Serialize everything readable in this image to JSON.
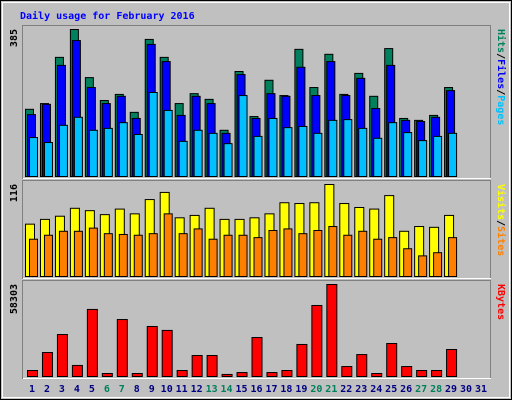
{
  "chart_data": [
    {
      "type": "bar",
      "title": "Daily usage for February 2016",
      "ylim": [
        0,
        385
      ],
      "yticks": [
        385
      ],
      "legend_separator": "/",
      "series": [
        {
          "name": "Hits",
          "color": "#00805c",
          "values": [
            176,
            191,
            312,
            385,
            259,
            199,
            215,
            168,
            359,
            312,
            191,
            217,
            202,
            121,
            275,
            157,
            252,
            212,
            333,
            233,
            320,
            215,
            270,
            210,
            335,
            152,
            147,
            160,
            233,
            null,
            null
          ]
        },
        {
          "name": "Files",
          "color": "#0000ff",
          "values": [
            162,
            189,
            291,
            356,
            233,
            191,
            210,
            152,
            346,
            301,
            160,
            210,
            191,
            113,
            267,
            152,
            217,
            210,
            286,
            212,
            301,
            212,
            257,
            178,
            291,
            147,
            144,
            155,
            225,
            null,
            null
          ]
        },
        {
          "name": "Pages",
          "color": "#00c0ff",
          "values": [
            102,
            89,
            134,
            155,
            121,
            126,
            141,
            110,
            220,
            173,
            92,
            121,
            113,
            86,
            212,
            105,
            152,
            128,
            131,
            113,
            147,
            149,
            126,
            100,
            141,
            115,
            94,
            105,
            113,
            null,
            null
          ]
        }
      ]
    },
    {
      "type": "bar",
      "ylim": [
        0,
        116
      ],
      "yticks": [
        116
      ],
      "legend_separator": "/",
      "series": [
        {
          "name": "Visits",
          "color": "#ffff00",
          "values": [
            66,
            72,
            76,
            86,
            83,
            78,
            85,
            79,
            97,
            106,
            74,
            77,
            86,
            72,
            72,
            74,
            79,
            93,
            92,
            93,
            116,
            92,
            87,
            85,
            102,
            57,
            63,
            62,
            77,
            null,
            null
          ]
        },
        {
          "name": "Sites",
          "color": "#ff8000",
          "values": [
            47,
            52,
            57,
            57,
            61,
            54,
            53,
            52,
            54,
            79,
            54,
            60,
            47,
            52,
            52,
            49,
            58,
            60,
            54,
            58,
            63,
            52,
            57,
            47,
            49,
            35,
            26,
            30,
            49,
            null,
            null
          ]
        }
      ]
    },
    {
      "type": "bar",
      "ylim": [
        0,
        58303
      ],
      "yticks": [
        58303
      ],
      "categories": [
        "1",
        "2",
        "3",
        "4",
        "5",
        "6",
        "7",
        "8",
        "9",
        "10",
        "11",
        "12",
        "13",
        "14",
        "15",
        "16",
        "17",
        "18",
        "19",
        "20",
        "21",
        "22",
        "23",
        "24",
        "25",
        "26",
        "27",
        "28",
        "29",
        "30",
        "31"
      ],
      "category_colors": [
        "#000080",
        "#000080",
        "#000080",
        "#000080",
        "#000080",
        "#00805c",
        "#00805c",
        "#000080",
        "#000080",
        "#000080",
        "#000080",
        "#000080",
        "#00805c",
        "#00805c",
        "#000080",
        "#000080",
        "#000080",
        "#000080",
        "#000080",
        "#00805c",
        "#00805c",
        "#000080",
        "#000080",
        "#000080",
        "#000080",
        "#000080",
        "#00805c",
        "#00805c",
        "#000080",
        "#000080",
        "#000080"
      ],
      "series": [
        {
          "name": "KBytes",
          "color": "#ff0000",
          "values": [
            3800,
            15200,
            26600,
            7000,
            42500,
            1900,
            36100,
            1900,
            31700,
            29200,
            3800,
            13300,
            13300,
            1300,
            2500,
            24700,
            2500,
            3800,
            20300,
            45000,
            58303,
            6300,
            13900,
            1900,
            20900,
            6300,
            3800,
            3800,
            17100,
            null,
            null
          ]
        }
      ]
    }
  ]
}
